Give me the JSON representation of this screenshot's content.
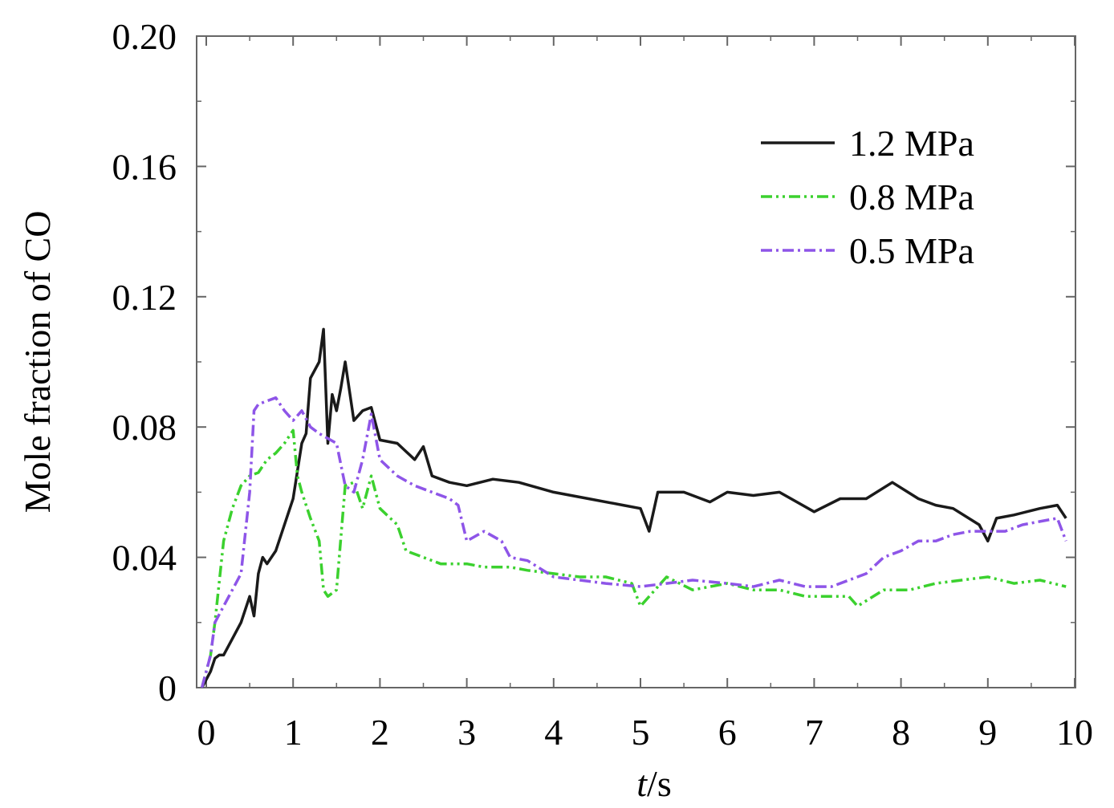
{
  "chart_data": {
    "type": "line",
    "title": "",
    "xlabel_italic": "t",
    "xlabel_rest": "/s",
    "ylabel": "Mole fraction of CO",
    "xlim": [
      -0.1,
      10
    ],
    "ylim": [
      0,
      0.2
    ],
    "x_ticks": [
      0,
      1,
      2,
      3,
      4,
      5,
      6,
      7,
      8,
      9,
      10
    ],
    "x_tick_labels": [
      "0",
      "1",
      "2",
      "3",
      "4",
      "5",
      "6",
      "7",
      "8",
      "9",
      "10"
    ],
    "y_ticks": [
      0,
      0.04,
      0.08,
      0.12,
      0.16,
      0.2
    ],
    "y_tick_labels": [
      "0",
      "0.04",
      "0.08",
      "0.12",
      "0.16",
      "0.20"
    ],
    "grid": false,
    "legend_position": "top-right",
    "series": [
      {
        "name": "1.2 MPa",
        "color": "#1a1a1a",
        "dash": "solid",
        "x": [
          -0.05,
          0.05,
          0.1,
          0.15,
          0.2,
          0.3,
          0.4,
          0.5,
          0.55,
          0.6,
          0.65,
          0.7,
          0.8,
          0.9,
          1.0,
          1.1,
          1.15,
          1.2,
          1.3,
          1.35,
          1.4,
          1.45,
          1.5,
          1.55,
          1.6,
          1.7,
          1.8,
          1.9,
          2.0,
          2.2,
          2.4,
          2.5,
          2.6,
          2.8,
          3.0,
          3.3,
          3.6,
          4.0,
          4.4,
          4.8,
          5.0,
          5.1,
          5.2,
          5.5,
          5.8,
          6.0,
          6.3,
          6.6,
          7.0,
          7.3,
          7.6,
          7.9,
          8.2,
          8.4,
          8.6,
          8.9,
          9.0,
          9.1,
          9.3,
          9.6,
          9.8,
          9.9
        ],
        "y": [
          0,
          0.005,
          0.009,
          0.01,
          0.01,
          0.015,
          0.02,
          0.028,
          0.022,
          0.035,
          0.04,
          0.038,
          0.042,
          0.05,
          0.058,
          0.075,
          0.078,
          0.095,
          0.1,
          0.11,
          0.075,
          0.09,
          0.085,
          0.092,
          0.1,
          0.082,
          0.085,
          0.086,
          0.076,
          0.075,
          0.07,
          0.074,
          0.065,
          0.063,
          0.062,
          0.064,
          0.063,
          0.06,
          0.058,
          0.056,
          0.055,
          0.048,
          0.06,
          0.06,
          0.057,
          0.06,
          0.059,
          0.06,
          0.054,
          0.058,
          0.058,
          0.063,
          0.058,
          0.056,
          0.055,
          0.05,
          0.045,
          0.052,
          0.053,
          0.055,
          0.056,
          0.052
        ]
      },
      {
        "name": "0.8 MPa",
        "color": "#3bd12e",
        "dash": "dash-dot-dot",
        "x": [
          -0.05,
          0.05,
          0.1,
          0.2,
          0.3,
          0.4,
          0.5,
          0.6,
          0.7,
          0.8,
          0.9,
          1.0,
          1.05,
          1.1,
          1.2,
          1.3,
          1.35,
          1.4,
          1.5,
          1.6,
          1.7,
          1.8,
          1.9,
          2.0,
          2.2,
          2.3,
          2.5,
          2.7,
          3.0,
          3.2,
          3.5,
          3.7,
          4.0,
          4.3,
          4.6,
          4.9,
          5.0,
          5.3,
          5.6,
          6.0,
          6.3,
          6.6,
          6.9,
          7.2,
          7.4,
          7.5,
          7.8,
          8.1,
          8.4,
          8.7,
          9.0,
          9.3,
          9.6,
          9.9
        ],
        "y": [
          0,
          0.01,
          0.02,
          0.045,
          0.055,
          0.062,
          0.065,
          0.066,
          0.07,
          0.072,
          0.075,
          0.079,
          0.065,
          0.06,
          0.052,
          0.045,
          0.03,
          0.028,
          0.03,
          0.062,
          0.063,
          0.055,
          0.065,
          0.055,
          0.05,
          0.042,
          0.04,
          0.038,
          0.038,
          0.037,
          0.037,
          0.036,
          0.035,
          0.034,
          0.034,
          0.032,
          0.025,
          0.034,
          0.03,
          0.032,
          0.03,
          0.03,
          0.028,
          0.028,
          0.028,
          0.025,
          0.03,
          0.03,
          0.032,
          0.033,
          0.034,
          0.032,
          0.033,
          0.031
        ]
      },
      {
        "name": "0.5 MPa",
        "color": "#8e55e8",
        "dash": "dash-dot",
        "x": [
          -0.05,
          0.05,
          0.1,
          0.2,
          0.3,
          0.4,
          0.5,
          0.55,
          0.6,
          0.7,
          0.8,
          0.9,
          1.0,
          1.1,
          1.2,
          1.3,
          1.5,
          1.6,
          1.7,
          1.8,
          1.9,
          2.0,
          2.2,
          2.4,
          2.6,
          2.8,
          2.9,
          3.0,
          3.2,
          3.4,
          3.5,
          3.7,
          4.0,
          4.3,
          4.6,
          5.0,
          5.3,
          5.6,
          6.0,
          6.3,
          6.6,
          6.9,
          7.2,
          7.4,
          7.6,
          7.8,
          8.0,
          8.2,
          8.4,
          8.6,
          8.8,
          9.0,
          9.2,
          9.4,
          9.6,
          9.8,
          9.9
        ],
        "y": [
          0,
          0.01,
          0.02,
          0.025,
          0.03,
          0.035,
          0.06,
          0.085,
          0.087,
          0.088,
          0.089,
          0.085,
          0.082,
          0.085,
          0.08,
          0.078,
          0.075,
          0.062,
          0.06,
          0.07,
          0.084,
          0.07,
          0.065,
          0.062,
          0.06,
          0.058,
          0.056,
          0.045,
          0.048,
          0.045,
          0.04,
          0.039,
          0.034,
          0.033,
          0.032,
          0.031,
          0.032,
          0.033,
          0.032,
          0.031,
          0.033,
          0.031,
          0.031,
          0.033,
          0.035,
          0.04,
          0.042,
          0.045,
          0.045,
          0.047,
          0.048,
          0.048,
          0.048,
          0.05,
          0.051,
          0.052,
          0.045
        ]
      }
    ]
  }
}
